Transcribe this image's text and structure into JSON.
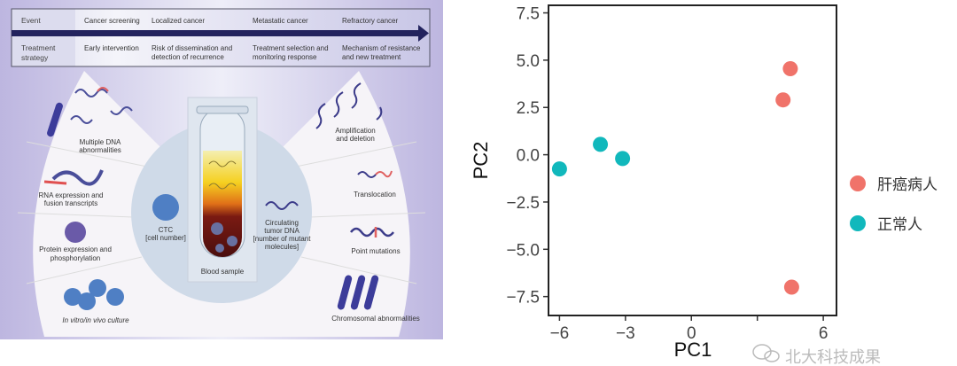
{
  "diagram": {
    "header": {
      "row1_label": "Event",
      "row2_label": "Treatment strategy",
      "row2_label_lines": [
        "Treatment",
        "strategy"
      ],
      "events": [
        "Cancer screening",
        "Localized cancer",
        "Metastatic cancer",
        "Refractory cancer"
      ],
      "strategies": [
        [
          "Early intervention"
        ],
        [
          "Risk of dissemination and",
          "detection of recurrence"
        ],
        [
          "Treatment selection and",
          "monitoring response"
        ],
        [
          "Mechanism of resistance",
          "and new treatment"
        ]
      ]
    },
    "left_items": [
      [
        "Multiple DNA",
        "abnormalities"
      ],
      [
        "RNA expression and",
        "fusion transcripts"
      ],
      [
        "Protein expression and",
        "phosphorylation"
      ],
      [
        "In vitro/in vivo culture"
      ]
    ],
    "ctc": [
      "CTC",
      "[cell number]"
    ],
    "tube_label": "Blood sample",
    "ctdna": [
      "Circulating",
      "tumor DNA",
      "[number of mutant",
      "molecules]"
    ],
    "right_items": [
      [
        "Amplification",
        "and deletion"
      ],
      [
        "Translocation"
      ],
      [
        "Point mutations"
      ],
      [
        "Chromosomal abnormalities"
      ]
    ]
  },
  "chart_data": {
    "type": "scatter",
    "title": "",
    "xlabel": "PC1",
    "ylabel": "PC2",
    "xlim": [
      -6.5,
      6.6
    ],
    "ylim": [
      -8.5,
      7.9
    ],
    "xticks": [
      -6,
      -3,
      0,
      3,
      6
    ],
    "xtick_labels": [
      "−6",
      "−3",
      "0",
      "",
      "6"
    ],
    "yticks": [
      7.5,
      5.0,
      2.5,
      0.0,
      -2.5,
      -5.0,
      -7.5
    ],
    "ytick_labels": [
      "7.5",
      "5.0",
      "2.5",
      "0.0",
      "−2.5",
      "−5.0",
      "−7.5"
    ],
    "grid": false,
    "legend_position": "right",
    "series": [
      {
        "name": "肝癌病人",
        "color": "#F0736A",
        "points": [
          [
            4.5,
            4.55
          ],
          [
            4.17,
            2.9
          ],
          [
            4.56,
            -7.0
          ]
        ]
      },
      {
        "name": "正常人",
        "color": "#11B8BC",
        "points": [
          [
            -6.0,
            -0.75
          ],
          [
            -4.14,
            0.55
          ],
          [
            -3.13,
            -0.2
          ]
        ]
      }
    ]
  },
  "watermark": "北大科技成果"
}
